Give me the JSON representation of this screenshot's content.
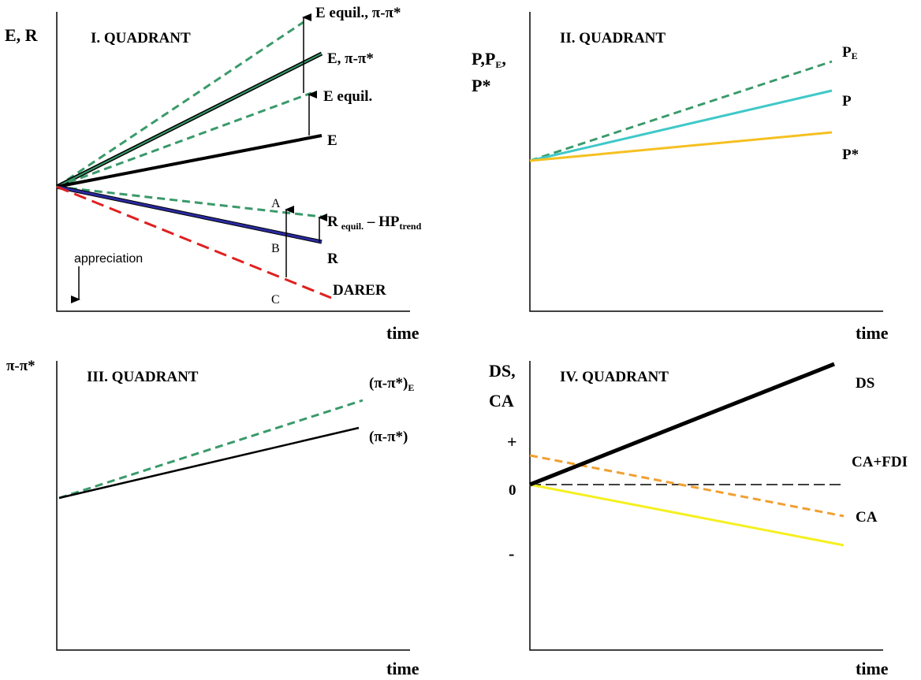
{
  "quadrant_1": {
    "title": "I. QUADRANT",
    "y_axis_label": "E, R",
    "x_axis_label": "time",
    "labels": {
      "e_equil_pi": "E equil., π-π*",
      "e_pi": "E, π-π*",
      "e_equil": "E equil.",
      "e": "E",
      "r_equil": {
        "main": "R",
        "sub1": "equil.",
        "mid": " – HP",
        "sub2": "trend"
      },
      "r": "R",
      "darer": "DARER",
      "a": "A",
      "b": "B",
      "c": "C",
      "appreciation": "appreciation"
    }
  },
  "quadrant_2": {
    "title": "II. QUADRANT",
    "y_axis_label": {
      "line1_main": "P,P",
      "line1_sub": "E",
      "line1_end": ",",
      "line2": "P*"
    },
    "x_axis_label": "time",
    "labels": {
      "pe": {
        "main": "P",
        "sub": "E"
      },
      "p": "P",
      "p_star": "P*"
    }
  },
  "quadrant_3": {
    "title": "III. QUADRANT",
    "y_axis_label": "π-π*",
    "x_axis_label": "time",
    "labels": {
      "pi_e": {
        "main": "(π-π*)",
        "sub": "E"
      },
      "pi": "(π-π*)"
    }
  },
  "quadrant_4": {
    "title": "IV. QUADRANT",
    "y_axis_label": {
      "line1": "DS,",
      "line2": "CA"
    },
    "x_axis_label": "time",
    "axis_marks": {
      "plus": "+",
      "zero": "0",
      "minus": "-"
    },
    "labels": {
      "ds": "DS",
      "ca_fdi": "CA+FDI",
      "ca": "CA"
    }
  }
}
